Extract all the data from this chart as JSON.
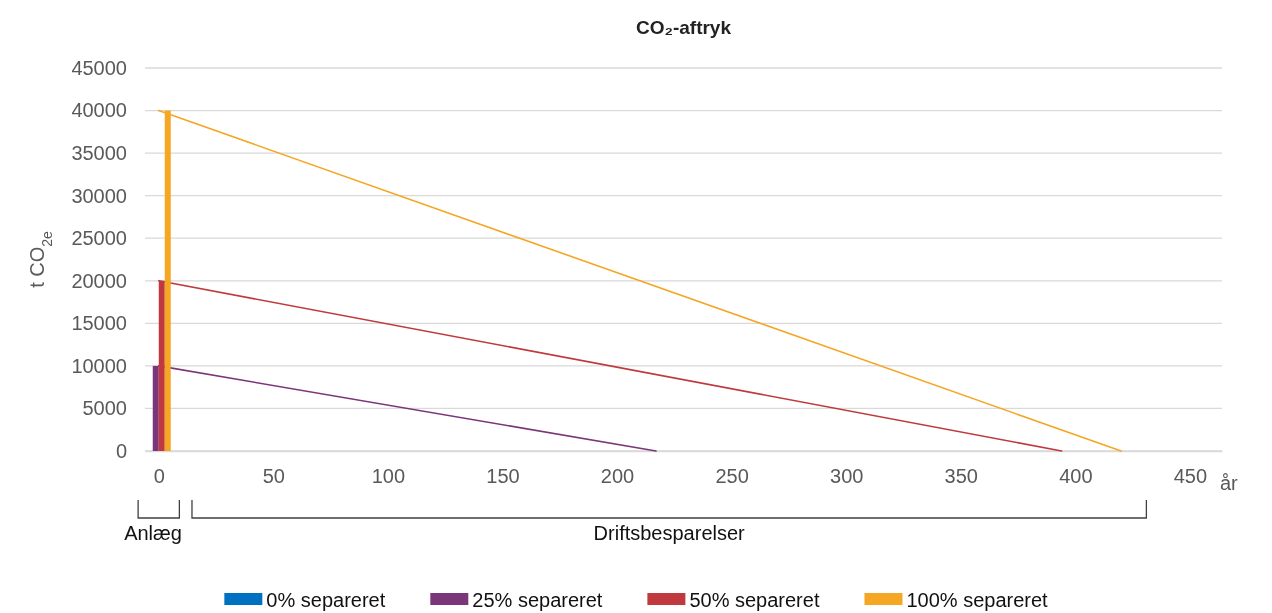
{
  "chart_data": {
    "type": "bar",
    "title": "CO₂-aftryk",
    "xlabel": "år",
    "ylabel": "t CO$_{2e}$",
    "annotations": [
      "Anlæg",
      "Driftsbesparelser"
    ],
    "xlim": [
      -6,
      464
    ],
    "xticks": [
      0,
      50,
      100,
      150,
      200,
      250,
      300,
      350,
      400,
      450
    ],
    "ylim": [
      0,
      45000
    ],
    "yticks": [
      0,
      5000,
      10000,
      15000,
      20000,
      25000,
      30000,
      35000,
      40000,
      45000
    ],
    "grid": "y",
    "legend": "bottom",
    "series": [
      {
        "name": "0% separeret",
        "color": "#0070c0",
        "x": [
          0
        ],
        "values": [
          0
        ]
      },
      {
        "name": "25% separeret",
        "color": "#7b3579",
        "x": [
          0
        ],
        "values": [
          10000
        ]
      },
      {
        "name": "50% separeret",
        "color": "#c0393e",
        "x": [
          0
        ],
        "values": [
          20000
        ]
      },
      {
        "name": "100% separeret",
        "color": "#f5a623",
        "x": [
          0
        ],
        "values": [
          40000
        ]
      },
      {
        "type": "line",
        "color": "#7b3579",
        "x": [
          0,
          217
        ],
        "values": [
          10000,
          0
        ]
      },
      {
        "type": "line",
        "color": "#c0393e",
        "x": [
          0,
          394
        ],
        "values": [
          20000,
          0
        ]
      },
      {
        "type": "line",
        "color": "#f5a623",
        "x": [
          0,
          420
        ],
        "values": [
          40000,
          0
        ]
      }
    ]
  }
}
